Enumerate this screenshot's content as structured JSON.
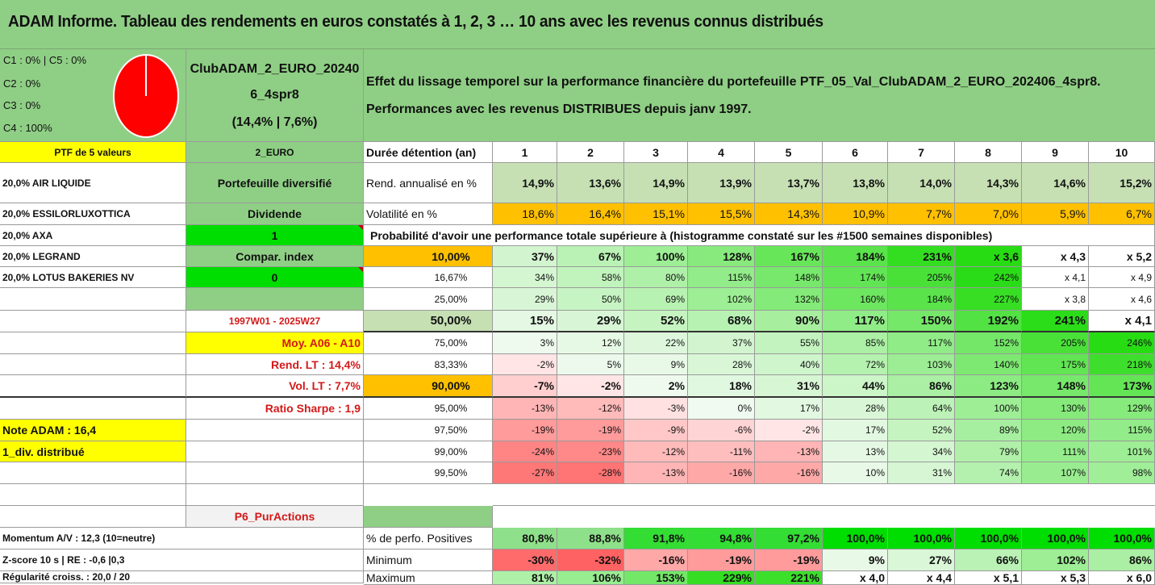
{
  "title": "ADAM Informe. Tableau des rendements en euros constatés à 1, 2, 3 … 10 ans avec les revenus connus distribués",
  "categories": {
    "line1": "C1 : 0% | C5 : 0%",
    "line2": "C2 : 0%",
    "line3": "C3 : 0%",
    "line4": "C4 : 100%"
  },
  "pie": {
    "fill": "#ff0000",
    "stroke": "#ffffff"
  },
  "portfolio": {
    "name_line1": "ClubADAM_2_EURO_20240",
    "name_line2": "6_4spr8",
    "perf": "(14,4% | 7,6%)"
  },
  "description": {
    "line1": "Effet du lissage temporel sur la performance financière du portefeuille PTF_05_Val_ClubADAM_2_EURO_202406_4spr8.",
    "line2": "Performances avec les revenus DISTRIBUES depuis janv 1997."
  },
  "sidebar": {
    "ptf_label": "PTF de 5 valeurs",
    "holdings": [
      "20,0% AIR LIQUIDE",
      "20,0% ESSILORLUXOTTICA",
      "20,0% AXA",
      "20,0% LEGRAND",
      "20,0% LOTUS BAKERIES NV"
    ]
  },
  "params": {
    "currency": "2_EURO",
    "diversified": "Portefeuille diversifié",
    "dividend_label": "Dividende",
    "dividend_value": "1",
    "index_label": "Compar. index",
    "index_value": "0",
    "period": "1997W01 - 2025W27",
    "moy": "Moy. A06 - A10",
    "rend_lt": "Rend. LT : 14,4%",
    "vol_lt": "Vol. LT : 7,7%",
    "sharpe": "Ratio Sharpe : 1,9",
    "note": "Note ADAM : 16,4",
    "div": "1_div. distribué",
    "p6": "P6_PurActions"
  },
  "table": {
    "years_label": "Durée détention (an)",
    "years": [
      "1",
      "2",
      "3",
      "4",
      "5",
      "6",
      "7",
      "8",
      "9",
      "10"
    ],
    "rend_label": "Rend. annualisé en %",
    "rend": [
      "14,9%",
      "13,6%",
      "14,9%",
      "13,9%",
      "13,7%",
      "13,8%",
      "14,0%",
      "14,3%",
      "14,6%",
      "15,2%"
    ],
    "vol_label": "Volatilité en %",
    "vol": [
      "18,6%",
      "16,4%",
      "15,1%",
      "15,5%",
      "14,3%",
      "10,9%",
      "7,7%",
      "7,0%",
      "5,9%",
      "6,7%"
    ],
    "prob_title": "Probabilité d'avoir une performance totale supérieure à (histogramme constaté sur les #1500 semaines disponibles)",
    "quantiles": [
      {
        "pct": "10,00%",
        "values": [
          "37%",
          "67%",
          "100%",
          "128%",
          "167%",
          "184%",
          "231%",
          "x 3,6",
          "x 4,3",
          "x 5,2"
        ]
      },
      {
        "pct": "16,67%",
        "values": [
          "34%",
          "58%",
          "80%",
          "115%",
          "148%",
          "174%",
          "205%",
          "242%",
          "x 4,1",
          "x 4,9"
        ]
      },
      {
        "pct": "25,00%",
        "values": [
          "29%",
          "50%",
          "69%",
          "102%",
          "132%",
          "160%",
          "184%",
          "227%",
          "x 3,8",
          "x 4,6"
        ]
      },
      {
        "pct": "50,00%",
        "values": [
          "15%",
          "29%",
          "52%",
          "68%",
          "90%",
          "117%",
          "150%",
          "192%",
          "241%",
          "x 4,1"
        ]
      },
      {
        "pct": "75,00%",
        "values": [
          "3%",
          "12%",
          "22%",
          "37%",
          "55%",
          "85%",
          "117%",
          "152%",
          "205%",
          "246%"
        ]
      },
      {
        "pct": "83,33%",
        "values": [
          "-2%",
          "5%",
          "9%",
          "28%",
          "40%",
          "72%",
          "103%",
          "140%",
          "175%",
          "218%"
        ]
      },
      {
        "pct": "90,00%",
        "values": [
          "-7%",
          "-2%",
          "2%",
          "18%",
          "31%",
          "44%",
          "86%",
          "123%",
          "148%",
          "173%"
        ]
      },
      {
        "pct": "95,00%",
        "values": [
          "-13%",
          "-12%",
          "-3%",
          "0%",
          "17%",
          "28%",
          "64%",
          "100%",
          "130%",
          "129%"
        ]
      },
      {
        "pct": "97,50%",
        "values": [
          "-19%",
          "-19%",
          "-9%",
          "-6%",
          "-2%",
          "17%",
          "52%",
          "89%",
          "120%",
          "115%"
        ]
      },
      {
        "pct": "99,00%",
        "values": [
          "-24%",
          "-23%",
          "-12%",
          "-11%",
          "-13%",
          "13%",
          "34%",
          "79%",
          "111%",
          "101%"
        ]
      },
      {
        "pct": "99,50%",
        "values": [
          "-27%",
          "-28%",
          "-13%",
          "-16%",
          "-16%",
          "10%",
          "31%",
          "74%",
          "107%",
          "98%"
        ]
      }
    ],
    "momentum": "Momentum A/V : 12,3 (10=neutre)",
    "pos_label": "% de perfo. Positives",
    "pos": [
      "80,8%",
      "88,8%",
      "91,8%",
      "94,8%",
      "97,2%",
      "100,0%",
      "100,0%",
      "100,0%",
      "100,0%",
      "100,0%"
    ],
    "zscore": "Z-score 10 s | RE : -0,6 |0,3",
    "min_label": "Minimum",
    "min": [
      "-30%",
      "-32%",
      "-16%",
      "-19%",
      "-19%",
      "9%",
      "27%",
      "66%",
      "102%",
      "86%"
    ],
    "regul": "Régularité croiss. : 20,0 / 20",
    "max_label": "Maximum",
    "max": [
      "81%",
      "106%",
      "153%",
      "229%",
      "221%",
      "x 4,0",
      "x 4,4",
      "x 5,1",
      "x 5,3",
      "x 6,0"
    ]
  },
  "colors": {
    "header_green": "#8fcf85",
    "light_green": "#c6e0b4",
    "bright_green": "#00dd00",
    "yellow": "#ffff00",
    "orange": "#ffc000",
    "red_text": "#d41919"
  }
}
